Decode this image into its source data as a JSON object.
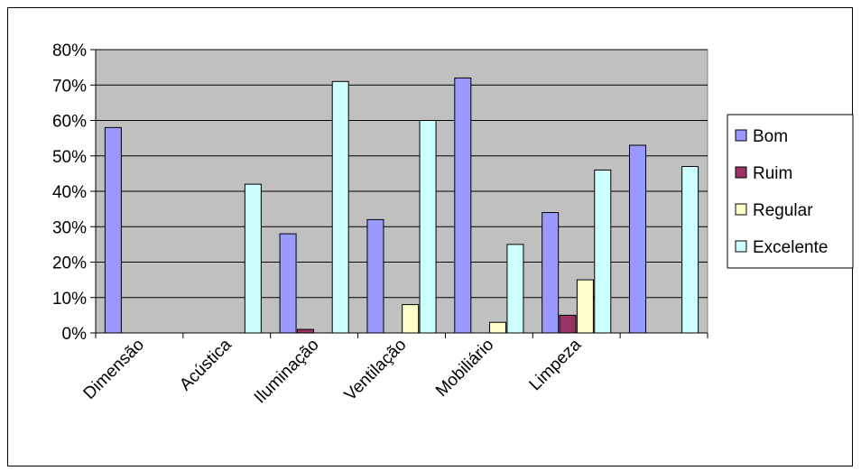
{
  "chart_data": {
    "type": "bar",
    "categories": [
      "Dimensão",
      "Acústica",
      "Iluminação",
      "Ventilação",
      "Mobiliário",
      "Limpeza",
      ""
    ],
    "series": [
      {
        "name": "Bom",
        "values": [
          58,
          null,
          28,
          32,
          72,
          34,
          53
        ],
        "color": "#9999ff"
      },
      {
        "name": "Ruim",
        "values": [
          null,
          null,
          1,
          null,
          null,
          5,
          null
        ],
        "color": "#993366"
      },
      {
        "name": "Regular",
        "values": [
          null,
          null,
          null,
          8,
          3,
          15,
          null
        ],
        "color": "#ffffcc"
      },
      {
        "name": "Excelente",
        "values": [
          null,
          42,
          71,
          60,
          25,
          46,
          47
        ],
        "color": "#ccffff"
      }
    ],
    "tick_labels": [
      "0%",
      "10%",
      "20%",
      "30%",
      "40%",
      "50%",
      "60%",
      "70%",
      "80%"
    ],
    "ylim": [
      0,
      80
    ],
    "grid": true,
    "plot_background": "#c0c0c0",
    "legend_position": "right",
    "title": "",
    "xlabel": "",
    "ylabel": ""
  }
}
